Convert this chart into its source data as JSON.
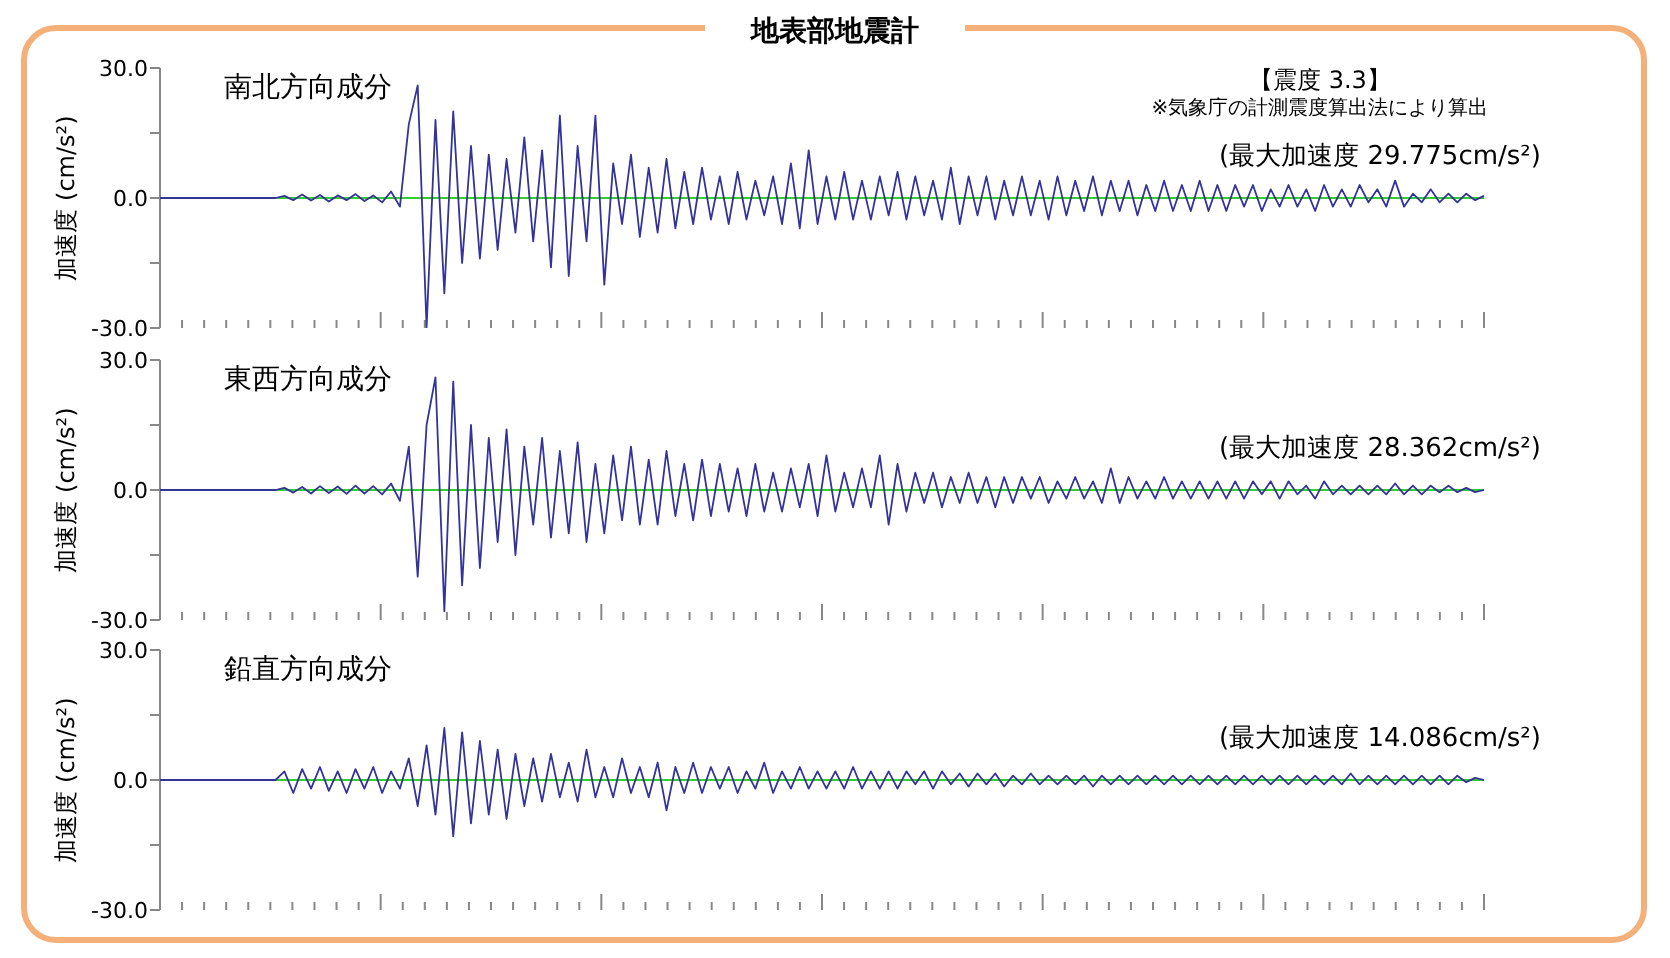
{
  "chart_data": [
    {
      "type": "line",
      "title": "地表部地震計",
      "subtitle": "南北方向成分",
      "ylabel": "加速度 (cm/s²)",
      "annotations": [
        "【震度 3.3】",
        "※気象庁の計測震度算出法により算出",
        "(最大加速度 29.775cm/s²)"
      ],
      "categories": [
        null,
        null,
        null,
        null,
        null,
        null,
        null,
        null,
        null,
        null,
        null,
        null,
        null,
        null,
        null,
        null,
        null,
        null,
        null,
        null,
        null,
        null,
        null,
        null,
        null,
        null,
        null,
        null,
        null,
        null,
        null,
        null,
        null,
        null,
        null,
        null,
        null,
        null,
        null,
        null,
        null,
        null,
        null,
        null,
        null,
        null,
        null,
        null,
        null,
        null,
        null,
        null,
        null,
        null,
        null,
        null,
        null,
        null,
        null,
        null,
        null,
        null,
        null,
        null,
        null,
        null,
        null,
        null,
        null,
        null,
        null,
        null,
        null,
        null,
        null,
        null,
        null,
        null,
        null,
        null,
        null,
        null,
        null,
        null,
        null,
        null,
        null,
        null,
        null,
        null,
        null,
        null,
        null,
        null,
        null,
        null,
        null,
        null,
        null,
        null,
        null,
        null,
        null,
        null,
        null,
        null,
        null,
        null,
        null,
        null,
        null,
        null,
        null,
        null,
        null,
        null,
        null,
        null,
        null,
        null,
        null,
        null,
        null,
        null,
        null,
        null,
        null,
        null,
        null,
        null,
        null,
        null,
        null,
        null,
        null,
        null,
        null,
        null,
        null,
        null,
        null,
        null,
        null,
        null,
        null,
        null,
        null,
        null,
        null,
        null
      ],
      "series": [
        {
          "color": "#333399",
          "values": [
            0,
            0,
            0,
            0,
            0,
            0,
            0,
            0,
            0,
            0,
            0,
            0,
            0,
            0,
            0.5,
            -0.5,
            0.8,
            -0.6,
            0.7,
            -0.8,
            0.6,
            -0.5,
            0.9,
            -0.7,
            0.6,
            -1,
            1.5,
            -2,
            17,
            26,
            -29.8,
            18,
            -22,
            20,
            -15,
            12,
            -14,
            10,
            -12,
            9,
            -8,
            14,
            -10,
            11,
            -16,
            19,
            -18,
            12,
            -10,
            19,
            -20,
            8,
            -6,
            10,
            -9,
            7,
            -8,
            9,
            -7,
            6,
            -6,
            7,
            -5,
            5,
            -6,
            6,
            -5,
            4,
            -4,
            5,
            -6,
            8,
            -7,
            11,
            -6,
            5,
            -5,
            6,
            -5,
            4,
            -5,
            5,
            -4,
            6,
            -5,
            5,
            -4,
            4,
            -5,
            7,
            -6,
            5,
            -4,
            5,
            -5,
            4,
            -4,
            5,
            -4,
            4,
            -5,
            5,
            -4,
            4,
            -3,
            5,
            -4,
            4,
            -3,
            4,
            -4,
            3,
            -3,
            4,
            -3,
            3,
            -3,
            4,
            -3,
            3,
            -3,
            3,
            -2,
            3,
            -3,
            2,
            -2,
            3,
            -2,
            2,
            -3,
            3,
            -2,
            2,
            -2,
            3,
            -1,
            2,
            -2,
            4,
            -2,
            1,
            -1,
            2,
            -1,
            1,
            -1,
            1,
            -0.5,
            0.5
          ]
        }
      ],
      "ylim": [
        -30,
        30
      ],
      "yticks": [
        {
          "value": -30,
          "label": "-30.0"
        },
        {
          "value": -15,
          "label": null
        },
        {
          "value": 0,
          "label": "0.0"
        },
        {
          "value": 15,
          "label": null
        },
        {
          "value": 30,
          "label": "30.0"
        }
      ],
      "ref_lines": [
        {
          "axis": "y",
          "value": 0,
          "color": "#33cc33"
        }
      ],
      "tick_labels": "y",
      "grid": false
    },
    {
      "type": "line",
      "subtitle": "東西方向成分",
      "ylabel": "加速度 (cm/s²)",
      "annotations": [
        "(最大加速度 28.362cm/s²)"
      ],
      "categories": [
        null,
        null,
        null,
        null,
        null,
        null,
        null,
        null,
        null,
        null,
        null,
        null,
        null,
        null,
        null,
        null,
        null,
        null,
        null,
        null,
        null,
        null,
        null,
        null,
        null,
        null,
        null,
        null,
        null,
        null,
        null,
        null,
        null,
        null,
        null,
        null,
        null,
        null,
        null,
        null,
        null,
        null,
        null,
        null,
        null,
        null,
        null,
        null,
        null,
        null,
        null,
        null,
        null,
        null,
        null,
        null,
        null,
        null,
        null,
        null,
        null,
        null,
        null,
        null,
        null,
        null,
        null,
        null,
        null,
        null,
        null,
        null,
        null,
        null,
        null,
        null,
        null,
        null,
        null,
        null,
        null,
        null,
        null,
        null,
        null,
        null,
        null,
        null,
        null,
        null,
        null,
        null,
        null,
        null,
        null,
        null,
        null,
        null,
        null,
        null,
        null,
        null,
        null,
        null,
        null,
        null,
        null,
        null,
        null,
        null,
        null,
        null,
        null,
        null,
        null,
        null,
        null,
        null,
        null,
        null,
        null,
        null,
        null,
        null,
        null,
        null,
        null,
        null,
        null,
        null,
        null,
        null,
        null,
        null,
        null,
        null,
        null,
        null,
        null,
        null,
        null,
        null,
        null,
        null,
        null,
        null,
        null,
        null,
        null,
        null
      ],
      "series": [
        {
          "color": "#333399",
          "values": [
            0,
            0,
            0,
            0,
            0,
            0,
            0,
            0,
            0,
            0,
            0,
            0,
            0,
            0,
            0.5,
            -0.6,
            0.7,
            -0.8,
            0.9,
            -0.7,
            0.8,
            -0.9,
            1,
            -0.8,
            0.9,
            -1,
            1.5,
            -2.5,
            10,
            -20,
            15,
            26,
            -28,
            25,
            -22,
            15,
            -18,
            12,
            -12,
            14,
            -15,
            10,
            -8,
            12,
            -11,
            9,
            -10,
            11,
            -12,
            6,
            -10,
            8,
            -7,
            10,
            -8,
            7,
            -8,
            9,
            -6,
            6,
            -7,
            7,
            -6,
            6,
            -5,
            5,
            -6,
            6,
            -5,
            4,
            -5,
            5,
            -4,
            6,
            -6,
            8,
            -5,
            4,
            -4,
            5,
            -4,
            8,
            -8,
            6,
            -5,
            4,
            -3,
            4,
            -4,
            3,
            -3,
            4,
            -3,
            3,
            -4,
            3,
            -3,
            3,
            -2,
            3,
            -3,
            2,
            -2,
            3,
            -2,
            2,
            -3,
            5,
            -3,
            3,
            -2,
            2,
            -2,
            3,
            -2,
            2,
            -2,
            2,
            -2,
            2,
            -2,
            2,
            -2,
            2,
            -1,
            2,
            -2,
            2,
            -1,
            1,
            -2,
            2,
            -1,
            1,
            -1,
            1,
            -1,
            1,
            -1,
            1.5,
            -1,
            1,
            -1,
            1,
            -0.5,
            1,
            -0.5,
            0.5,
            -0.5,
            0
          ]
        }
      ],
      "ylim": [
        -30,
        30
      ],
      "yticks": [
        {
          "value": -30,
          "label": "-30.0"
        },
        {
          "value": -15,
          "label": null
        },
        {
          "value": 0,
          "label": "0.0"
        },
        {
          "value": 15,
          "label": null
        },
        {
          "value": 30,
          "label": "30.0"
        }
      ],
      "ref_lines": [
        {
          "axis": "y",
          "value": 0,
          "color": "#33cc33"
        }
      ],
      "tick_labels": "y",
      "grid": false
    },
    {
      "type": "line",
      "subtitle": "鉛直方向成分",
      "ylabel": "加速度 (cm/s²)",
      "annotations": [
        "(最大加速度 14.086cm/s²)"
      ],
      "categories": [
        null,
        null,
        null,
        null,
        null,
        null,
        null,
        null,
        null,
        null,
        null,
        null,
        null,
        null,
        null,
        null,
        null,
        null,
        null,
        null,
        null,
        null,
        null,
        null,
        null,
        null,
        null,
        null,
        null,
        null,
        null,
        null,
        null,
        null,
        null,
        null,
        null,
        null,
        null,
        null,
        null,
        null,
        null,
        null,
        null,
        null,
        null,
        null,
        null,
        null,
        null,
        null,
        null,
        null,
        null,
        null,
        null,
        null,
        null,
        null,
        null,
        null,
        null,
        null,
        null,
        null,
        null,
        null,
        null,
        null,
        null,
        null,
        null,
        null,
        null,
        null,
        null,
        null,
        null,
        null,
        null,
        null,
        null,
        null,
        null,
        null,
        null,
        null,
        null,
        null,
        null,
        null,
        null,
        null,
        null,
        null,
        null,
        null,
        null,
        null,
        null,
        null,
        null,
        null,
        null,
        null,
        null,
        null,
        null,
        null,
        null,
        null,
        null,
        null,
        null,
        null,
        null,
        null,
        null,
        null,
        null,
        null,
        null,
        null,
        null,
        null,
        null,
        null,
        null,
        null,
        null,
        null,
        null,
        null,
        null,
        null,
        null,
        null,
        null,
        null,
        null,
        null,
        null,
        null,
        null,
        null,
        null,
        null,
        null,
        null
      ],
      "series": [
        {
          "color": "#333399",
          "values": [
            0,
            0,
            0,
            0,
            0,
            0,
            0,
            0,
            0,
            0,
            0,
            0,
            0,
            0,
            2,
            -3,
            2.5,
            -2,
            3,
            -2.5,
            2,
            -3,
            2.5,
            -2,
            3,
            -3,
            2,
            -2,
            5,
            -6,
            8,
            -8,
            12,
            -13,
            11,
            -10,
            9,
            -8,
            7,
            -9,
            6,
            -6,
            5,
            -5,
            6,
            -4,
            4,
            -5,
            7,
            -4,
            3,
            -4,
            5,
            -3,
            3,
            -4,
            4,
            -7,
            3,
            -3,
            4,
            -3,
            3,
            -2,
            3,
            -3,
            2,
            -2,
            4,
            -3,
            2,
            -2,
            3,
            -2,
            2,
            -2,
            2,
            -2,
            3,
            -2,
            2,
            -2,
            2,
            -2,
            2,
            -1,
            2,
            -2,
            2,
            -1,
            1.5,
            -1.5,
            1.5,
            -1,
            1.5,
            -1.5,
            1,
            -1,
            1.5,
            -1,
            1,
            -1,
            1,
            -1,
            1,
            -1.5,
            1,
            -1,
            1,
            -1,
            1,
            -1,
            1,
            -1,
            1,
            -1,
            1,
            -1,
            1,
            -1,
            1,
            -1,
            1,
            -1,
            1,
            -1,
            1,
            -1,
            1,
            -1,
            1,
            -1,
            1,
            -1,
            1.5,
            -1,
            1,
            -1,
            1,
            -1,
            1,
            -1,
            1,
            -1,
            1,
            -1,
            1,
            -0.5,
            0.5,
            0
          ]
        }
      ],
      "ylim": [
        -30,
        30
      ],
      "yticks": [
        {
          "value": -30,
          "label": "-30.0"
        },
        {
          "value": -15,
          "label": null
        },
        {
          "value": 0,
          "label": "0.0"
        },
        {
          "value": 15,
          "label": null
        },
        {
          "value": 30,
          "label": "30.0"
        }
      ],
      "ref_lines": [
        {
          "axis": "y",
          "value": 0,
          "color": "#33cc33"
        }
      ],
      "tick_labels": "y",
      "grid": false
    }
  ]
}
